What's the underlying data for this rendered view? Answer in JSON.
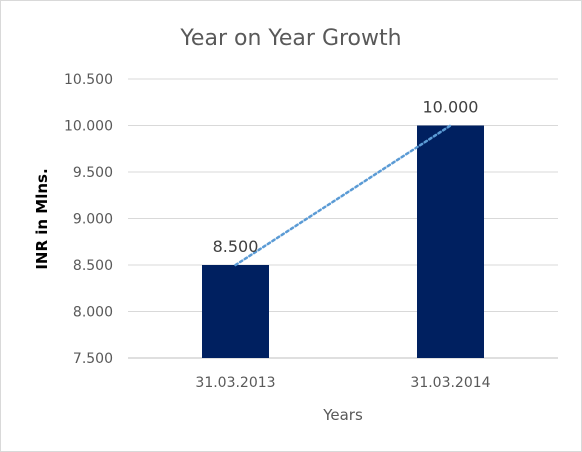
{
  "chart_data": {
    "type": "bar",
    "title": "Year on Year Growth",
    "xlabel": "Years",
    "ylabel": "INR in Mlns.",
    "categories": [
      "31.03.2013",
      "31.03.2014"
    ],
    "values": [
      8500,
      10000
    ],
    "data_labels": [
      "8.500",
      "10.000"
    ],
    "ylim": [
      7500,
      10500
    ],
    "yticks": [
      7500,
      8000,
      8500,
      9000,
      9500,
      10000,
      10500
    ],
    "ytick_labels": [
      "7.500",
      "8.000",
      "8.500",
      "9.000",
      "9.500",
      "10.000",
      "10.500"
    ],
    "grid": true,
    "legend": "none",
    "trendline": "linear",
    "colors": {
      "bar": "#002060",
      "trendline": "#5b9bd5",
      "grid": "#d9d9d9"
    }
  }
}
